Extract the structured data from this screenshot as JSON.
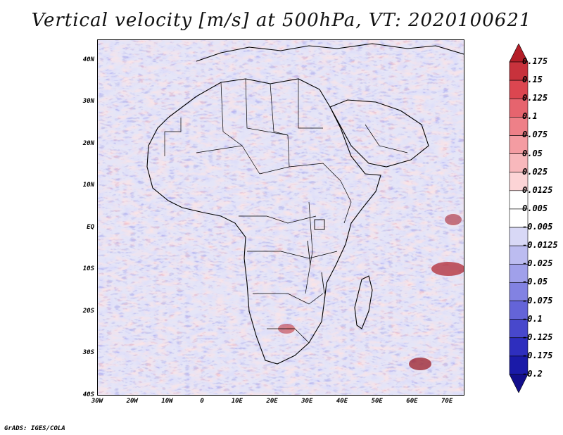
{
  "title": "Vertical velocity [m/s] at 500hPa, VT: 2020100621",
  "credit": "GrADS: IGES/COLA",
  "map": {
    "lon_range": [
      -30,
      75
    ],
    "lat_range": [
      -40,
      45
    ],
    "lat_labels": [
      "40N",
      "30N",
      "20N",
      "10N",
      "EQ",
      "10S",
      "20S",
      "30S",
      "40S"
    ],
    "lat_values": [
      40,
      30,
      20,
      10,
      0,
      -10,
      -20,
      -30,
      -40
    ],
    "lon_labels": [
      "30W",
      "20W",
      "10W",
      "0",
      "10E",
      "20E",
      "30E",
      "40E",
      "50E",
      "60E",
      "70E"
    ],
    "lon_values": [
      -30,
      -20,
      -10,
      0,
      10,
      20,
      30,
      40,
      50,
      60,
      70
    ]
  },
  "colorbar": {
    "labels": [
      "0.175",
      "0.15",
      "0.125",
      "0.1",
      "0.075",
      "0.05",
      "0.025",
      "0.0125",
      "0.005",
      "-0.005",
      "-0.0125",
      "-0.025",
      "-0.05",
      "-0.075",
      "-0.1",
      "-0.125",
      "-0.175",
      "-0.2"
    ],
    "colors": [
      "#b41e28",
      "#c8323c",
      "#dc4650",
      "#e6646e",
      "#ee8088",
      "#f49ca2",
      "#f8b8bc",
      "#fcd4d6",
      "#ffffff",
      "#ffffff",
      "#d8d8f6",
      "#bcbcf0",
      "#a0a0ea",
      "#8282e2",
      "#6464d8",
      "#4848cc",
      "#2e2ebe",
      "#1a1aa8",
      "#120e8c"
    ]
  }
}
